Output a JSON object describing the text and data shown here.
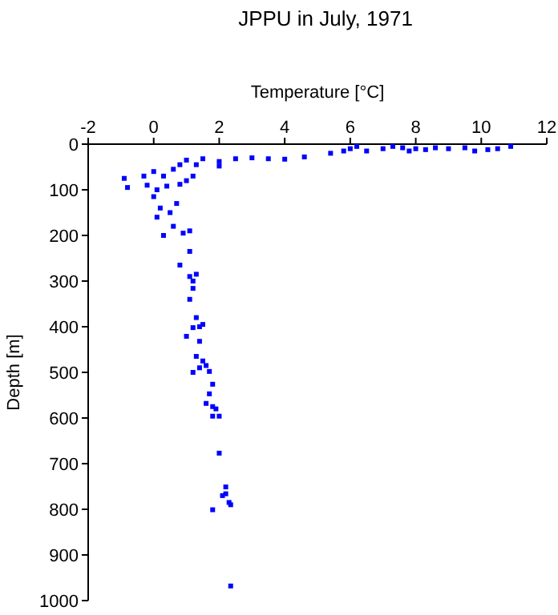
{
  "chart_data": {
    "type": "scatter",
    "title": "JPPU in July, 1971",
    "xlabel": "Temperature [°C]",
    "ylabel": "Depth [m]",
    "xlim": [
      -2,
      12
    ],
    "xticks": [
      -2,
      0,
      2,
      4,
      6,
      8,
      10,
      12
    ],
    "ylim": [
      1000,
      0
    ],
    "yticks": [
      0,
      100,
      200,
      300,
      400,
      500,
      600,
      700,
      800,
      900,
      1000
    ],
    "marker": "square",
    "grid": false,
    "series": [
      {
        "color": "#0000ff",
        "x": [
          5.4,
          5.8,
          6.0,
          6.2,
          6.5,
          7.0,
          7.3,
          7.6,
          7.8,
          8.0,
          8.3,
          8.6,
          9.0,
          9.5,
          9.8,
          10.2,
          10.5,
          10.9,
          1.0,
          1.5,
          2.0,
          2.5,
          3.0,
          3.5,
          4.0,
          4.6,
          0.8,
          1.3,
          2.0,
          -0.9,
          -0.8,
          -0.3,
          0,
          0.3,
          0.6,
          1.0,
          1.2,
          -0.2,
          0.4,
          0.8,
          0.1,
          0,
          0.2,
          0.5,
          0.1,
          0.7,
          0.3,
          0.6,
          0.9,
          1.1,
          1.1,
          0.8,
          1.3,
          1.2,
          1.1,
          1.2,
          1.1,
          1.3,
          1.5,
          1.4,
          1.2,
          1.0,
          1.4,
          1.3,
          1.5,
          1.4,
          1.6,
          1.2,
          1.7,
          1.8,
          1.7,
          1.6,
          1.8,
          1.9,
          1.8,
          2.0,
          2.0,
          2.2,
          2.1,
          2.2,
          2.3,
          2.35,
          1.8,
          2.35
        ],
        "values": [
          20,
          15,
          10,
          5,
          15,
          10,
          5,
          8,
          15,
          10,
          12,
          8,
          10,
          8,
          15,
          12,
          10,
          5,
          35,
          32,
          38,
          32,
          30,
          32,
          33,
          28,
          45,
          45,
          48,
          75,
          95,
          70,
          60,
          70,
          55,
          80,
          70,
          90,
          92,
          88,
          100,
          115,
          140,
          150,
          160,
          130,
          200,
          180,
          195,
          190,
          235,
          265,
          285,
          300,
          290,
          316,
          340,
          380,
          395,
          400,
          402,
          421,
          432,
          465,
          475,
          490,
          485,
          500,
          498,
          526,
          547,
          568,
          575,
          580,
          596,
          596,
          677,
          751,
          770,
          766,
          785,
          790,
          801,
          968
        ]
      }
    ]
  }
}
